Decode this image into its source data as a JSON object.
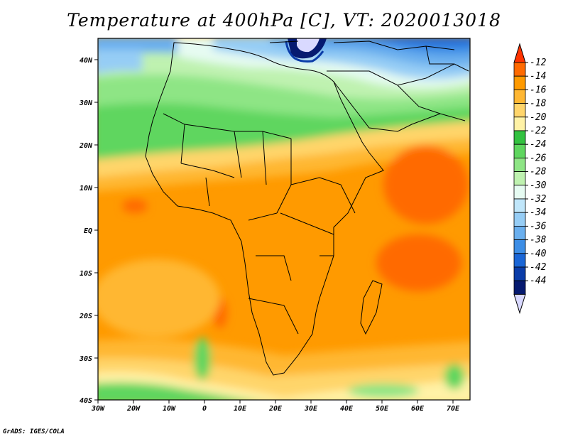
{
  "title": "Temperature at 400hPa [C], VT: 2020013018",
  "credit": "GrADS: IGES/COLA",
  "map": {
    "lat_labels": [
      "40N",
      "30N",
      "20N",
      "10N",
      "EQ",
      "10S",
      "20S",
      "30S",
      "40S"
    ],
    "lon_labels": [
      "30W",
      "20W",
      "10W",
      "0",
      "10E",
      "20E",
      "30E",
      "40E",
      "50E",
      "60E",
      "70E"
    ]
  },
  "colorbar": {
    "labels": [
      "-12",
      "-14",
      "-16",
      "-18",
      "-20",
      "-22",
      "-24",
      "-26",
      "-28",
      "-30",
      "-32",
      "-34",
      "-36",
      "-38",
      "-40",
      "-42",
      "-44"
    ],
    "colors": [
      "#ff3300",
      "#ff6a00",
      "#ff9a00",
      "#ffb733",
      "#ffd56b",
      "#fff2a6",
      "#33c240",
      "#5fd65f",
      "#8ee585",
      "#bff2b0",
      "#e6fbf2",
      "#c0e6fa",
      "#96cdf5",
      "#6aafee",
      "#3d8ee6",
      "#1a66d6",
      "#0a3ca8",
      "#061a70",
      "#d9d9ff"
    ]
  }
}
